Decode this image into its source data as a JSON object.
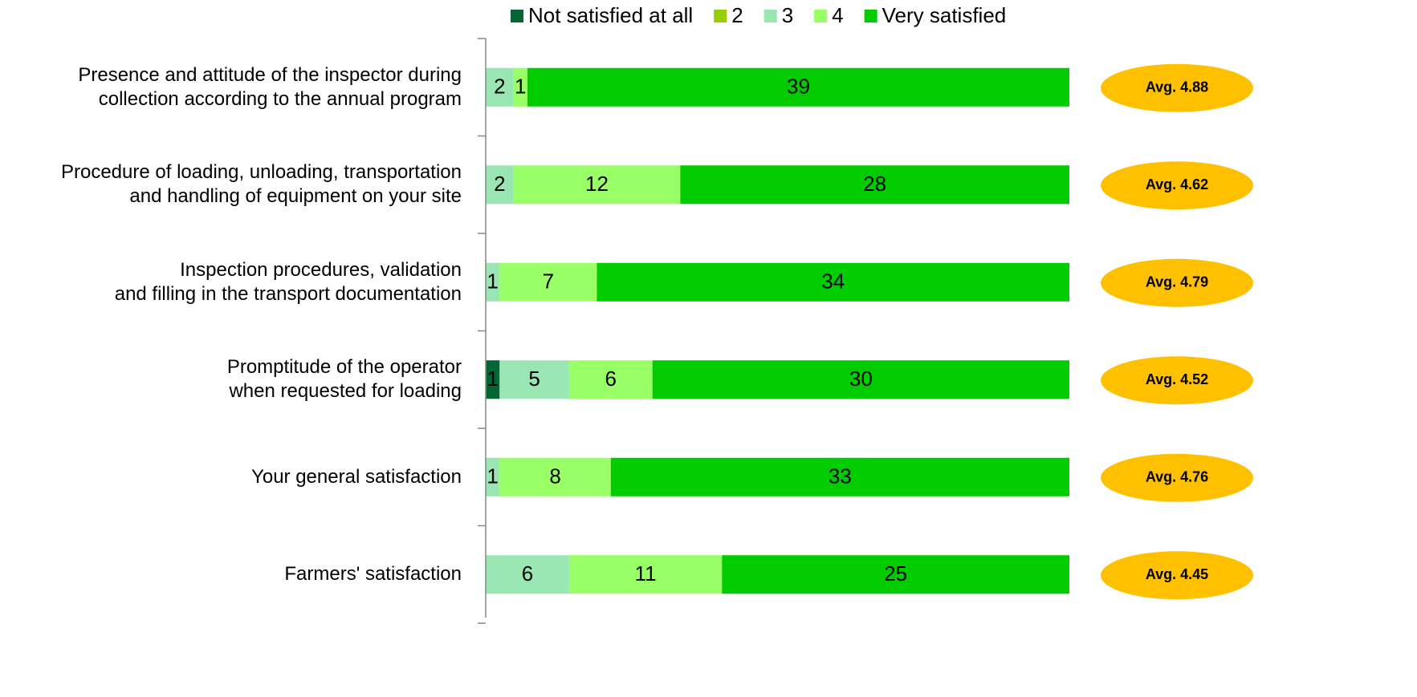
{
  "chart_data": {
    "type": "stacked_bar_horizontal",
    "categories": [
      "Presence and attitude of the inspector during\ncollection  according to  the annual program",
      "Procedure of loading, unloading, transportation\nand handling of equipment on your site",
      "Inspection procedures, validation\nand filling in the transport documentation",
      "Promptitude of the operator\nwhen requested for loading",
      "Your general satisfaction",
      "Farmers' satisfaction"
    ],
    "series": [
      {
        "name": "Not satisfied at all",
        "color": "#006633",
        "values": [
          0,
          0,
          0,
          1,
          0,
          0
        ]
      },
      {
        "name": "2",
        "color": "#99cc00",
        "values": [
          0,
          0,
          0,
          0,
          0,
          0
        ]
      },
      {
        "name": "3",
        "color": "#99e6b3",
        "values": [
          2,
          2,
          1,
          5,
          1,
          6
        ]
      },
      {
        "name": "4",
        "color": "#99ff66",
        "values": [
          1,
          12,
          7,
          6,
          8,
          11
        ]
      },
      {
        "name": "Very satisfied",
        "color": "#00cc00",
        "values": [
          39,
          28,
          34,
          30,
          33,
          25
        ]
      }
    ],
    "annotations": [
      "Avg. 4.88",
      "Avg. 4.62",
      "Avg. 4.79",
      "Avg. 4.52",
      "Avg. 4.76",
      "Avg. 4.45"
    ],
    "annotation_color": "#ffc000",
    "xlim": [
      0,
      42
    ],
    "legend": "top"
  }
}
